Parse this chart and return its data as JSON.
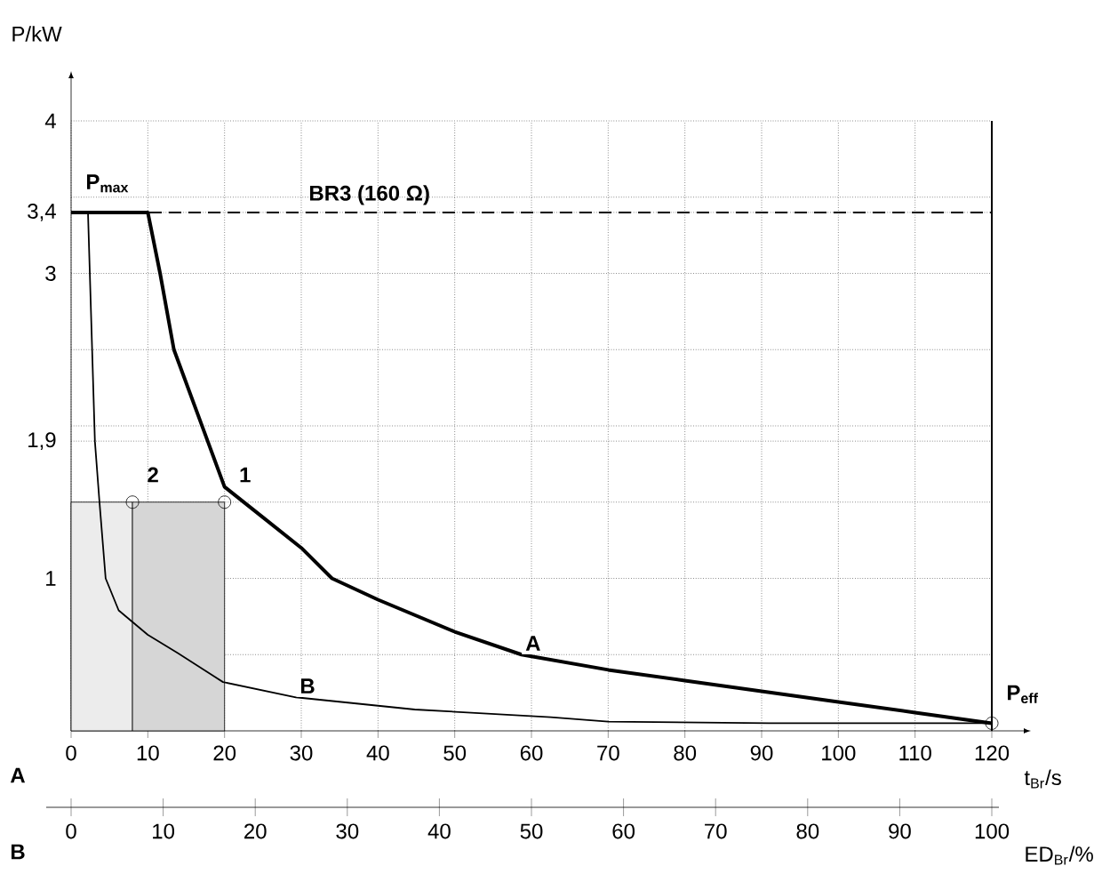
{
  "chart_data": {
    "type": "line",
    "xlabel": "t$_{Br}$/s",
    "ylabel": "P/kW",
    "x2label": "ED$_{Br}$/%",
    "xlim": [
      0,
      120
    ],
    "ylim": [
      0,
      4
    ],
    "x2lim": [
      0,
      100
    ],
    "xticks": [
      0,
      10,
      20,
      30,
      40,
      50,
      60,
      70,
      80,
      90,
      100,
      110,
      120
    ],
    "x2ticks": [
      0,
      10,
      20,
      30,
      40,
      50,
      60,
      70,
      80,
      90,
      100
    ],
    "yticks": [
      {
        "value": 0.5,
        "label": null
      },
      1,
      {
        "value": 1.5,
        "label": null
      },
      {
        "value": 1.9,
        "label": "1,9"
      },
      {
        "value": 2,
        "label": null
      },
      {
        "value": 2.5,
        "label": null
      },
      3,
      {
        "value": 3.4,
        "label": "3,4"
      },
      {
        "value": 3.5,
        "label": null
      },
      4
    ],
    "grid": true,
    "line_style": "solid",
    "marker": "none",
    "series": [
      {
        "type": "area",
        "color": "#ececec",
        "x": [
          0,
          8
        ],
        "values": [
          1.5,
          1.5
        ]
      },
      {
        "type": "area",
        "color": "#d6d6d6",
        "x": [
          8,
          20
        ],
        "values": [
          1.5,
          1.5
        ]
      },
      {
        "name": "A",
        "color": "#000000",
        "x": [
          0,
          10,
          11.6,
          13.4,
          17.8,
          20,
          25,
          30,
          34,
          40,
          50,
          58.7,
          70,
          80,
          90,
          100,
          110,
          120
        ],
        "values": [
          3.4,
          3.4,
          3,
          2.5,
          1.9,
          1.6,
          1.4,
          1.2,
          1,
          0.86,
          0.65,
          0.5,
          0.4,
          0.33,
          0.26,
          0.19,
          0.12,
          0.05
        ]
      },
      {
        "name": "B",
        "color": "#000000",
        "x": [
          0,
          2.2,
          3.1,
          3.7,
          4.5,
          6.2,
          10,
          13.9,
          19.8,
          29.3,
          44.8,
          62.5,
          70,
          91,
          120
        ],
        "values": [
          3.4,
          3.4,
          1.9,
          1.5,
          1,
          0.79,
          0.63,
          0.51,
          0.32,
          0.22,
          0.14,
          0.09,
          0.06,
          0.05,
          0.05
        ]
      },
      {
        "type": "scatter",
        "marker": "circle",
        "color": "#000000",
        "x": [
          8,
          20,
          120
        ],
        "values": [
          1.5,
          1.5,
          0.05
        ]
      }
    ],
    "ref_lines": [
      {
        "axis": "y",
        "value": 3.4,
        "label": "BR3 (160 Ω)",
        "line_style": "dashed",
        "color": "#000000"
      },
      {
        "axis": "x",
        "value": 120,
        "color": "#000000"
      }
    ],
    "annotations": [
      {
        "text": "P$_{max}$",
        "x": 0,
        "y": 3.4
      },
      {
        "text": "P$_{eff}$",
        "x": 120,
        "y": 0.05
      },
      {
        "text": "1",
        "x": 20,
        "y": 1.5
      },
      {
        "text": "2",
        "x": 8,
        "y": 1.5
      },
      "A",
      "B"
    ]
  }
}
